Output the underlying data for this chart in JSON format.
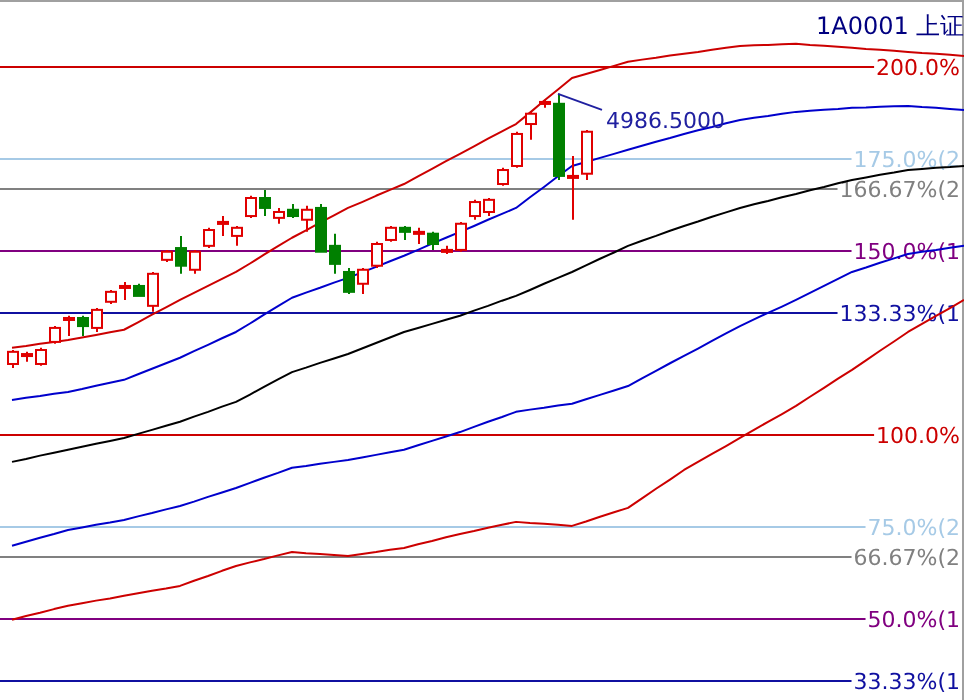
{
  "chart_data": {
    "type": "candlestick",
    "title": "1A0001 上证",
    "tick_labels": "y",
    "ylim": [
      27.7,
      217.9
    ],
    "categories": [
      null,
      null,
      null,
      null,
      null,
      null,
      null,
      null,
      null,
      null,
      null,
      null,
      null,
      null,
      null,
      null,
      null,
      null,
      null,
      null,
      null,
      null,
      null,
      null,
      null,
      null,
      null,
      null,
      null,
      null,
      null,
      null,
      null,
      null,
      null,
      null,
      null,
      null,
      null,
      null,
      null,
      null,
      null,
      null,
      null,
      null,
      null,
      null,
      null,
      null,
      null,
      null,
      null,
      null,
      null,
      null,
      null,
      null,
      null,
      null,
      null,
      null,
      null,
      null,
      null,
      null,
      null,
      null,
      null
    ],
    "yticks": [
      {
        "value": 200,
        "label": "200.0%"
      },
      {
        "value": 175,
        "label": "175.0%(2"
      },
      {
        "value": 166.67,
        "label": "166.67%(2"
      },
      {
        "value": 150,
        "label": "150.0%(1"
      },
      {
        "value": 133.33,
        "label": "133.33%(1"
      },
      {
        "value": 100,
        "label": "100.0%"
      },
      {
        "value": 75,
        "label": "75.0%(2"
      },
      {
        "value": 66.67,
        "label": "66.67%(2"
      },
      {
        "value": 50,
        "label": "50.0%(1"
      },
      {
        "value": 33.33,
        "label": "33.33%(1"
      }
    ],
    "ohlc": [
      [
        119.0,
        122.8,
        117.9,
        122.3
      ],
      [
        121.7,
        122.3,
        119.6,
        121.7
      ],
      [
        119.0,
        123.4,
        118.5,
        122.8
      ],
      [
        125.0,
        129.3,
        124.5,
        128.8
      ],
      [
        131.0,
        132.1,
        126.6,
        131.5
      ],
      [
        131.5,
        132.1,
        126.6,
        129.3
      ],
      [
        128.8,
        134.2,
        127.7,
        133.7
      ],
      [
        135.9,
        139.1,
        135.3,
        138.6
      ],
      [
        139.7,
        141.3,
        136.4,
        140.2
      ],
      [
        140.2,
        140.8,
        137.5,
        137.5
      ],
      [
        134.8,
        144.0,
        133.2,
        143.5
      ],
      [
        147.3,
        150.0,
        146.7,
        149.5
      ],
      [
        150.5,
        153.8,
        143.5,
        145.7
      ],
      [
        144.6,
        150.0,
        143.5,
        149.5
      ],
      [
        151.1,
        156.0,
        150.5,
        155.4
      ],
      [
        157.1,
        159.2,
        153.8,
        157.6
      ],
      [
        153.8,
        156.5,
        151.1,
        156.0
      ],
      [
        159.2,
        164.7,
        158.7,
        164.1
      ],
      [
        164.1,
        166.3,
        159.2,
        161.4
      ],
      [
        158.7,
        161.4,
        157.1,
        160.3
      ],
      [
        160.9,
        162.5,
        158.7,
        159.2
      ],
      [
        158.2,
        162.0,
        154.9,
        160.9
      ],
      [
        161.4,
        162.5,
        149.5,
        149.5
      ],
      [
        151.1,
        154.4,
        143.5,
        146.2
      ],
      [
        144.0,
        145.1,
        138.0,
        138.6
      ],
      [
        140.8,
        145.1,
        138.0,
        144.6
      ],
      [
        145.7,
        152.2,
        145.1,
        151.6
      ],
      [
        152.7,
        156.5,
        152.2,
        156.0
      ],
      [
        156.0,
        156.5,
        152.7,
        154.9
      ],
      [
        154.9,
        156.0,
        151.6,
        154.9
      ],
      [
        154.4,
        154.9,
        150.0,
        151.6
      ],
      [
        150.0,
        151.1,
        148.9,
        150.0
      ],
      [
        150.0,
        157.6,
        149.5,
        157.1
      ],
      [
        159.2,
        163.6,
        158.2,
        163.0
      ],
      [
        160.3,
        164.1,
        159.2,
        163.6
      ],
      [
        167.9,
        172.3,
        167.4,
        171.7
      ],
      [
        172.8,
        182.1,
        172.3,
        181.5
      ],
      [
        184.2,
        187.5,
        179.9,
        187.0
      ],
      [
        189.7,
        190.8,
        188.6,
        190.2
      ],
      [
        189.7,
        192.4,
        169.0,
        170.1
      ],
      [
        169.6,
        175.5,
        158.2,
        170.1
      ],
      [
        170.7,
        182.6,
        169.0,
        182.1
      ],
      null,
      null,
      null,
      null,
      null,
      null,
      null,
      null,
      null,
      null,
      null,
      null,
      null,
      null,
      null,
      null,
      null,
      null,
      null,
      null,
      null,
      null,
      null,
      null,
      null,
      null,
      null
    ],
    "colors": [
      "#e00000",
      "#e00000",
      "#e00000",
      "#e00000",
      "#e00000",
      "#008000",
      "#e00000",
      "#e00000",
      "#e00000",
      "#008000",
      "#e00000",
      "#e00000",
      "#008000",
      "#e00000",
      "#e00000",
      "#e00000",
      "#e00000",
      "#e00000",
      "#008000",
      "#e00000",
      "#008000",
      "#e00000",
      "#008000",
      "#008000",
      "#008000",
      "#e00000",
      "#e00000",
      "#e00000",
      "#008000",
      "#e00000",
      "#008000",
      "#e00000",
      "#e00000",
      "#e00000",
      "#e00000",
      "#e00000",
      "#e00000",
      "#e00000",
      "#e00000",
      "#008000",
      "#e00000",
      "#e00000",
      null,
      null,
      null,
      null,
      null,
      null,
      null,
      null,
      null,
      null,
      null,
      null,
      null,
      null,
      null,
      null,
      null,
      null,
      null,
      null,
      null,
      null,
      null,
      null,
      null,
      null,
      null
    ],
    "series": [
      {
        "type": "line",
        "color": "#cc0000",
        "values": [
          123.4,
          123.9,
          124.5,
          125.0,
          125.5,
          126.2,
          126.9,
          127.6,
          128.3,
          130.3,
          132.4,
          134.4,
          136.4,
          138.3,
          140.2,
          142.1,
          144.0,
          146.3,
          148.7,
          151.0,
          153.3,
          155.3,
          157.4,
          159.4,
          161.4,
          163.0,
          164.7,
          166.3,
          167.9,
          170.0,
          172.0,
          174.1,
          176.1,
          178.1,
          180.2,
          182.2,
          184.2,
          187.3,
          190.5,
          193.6,
          196.7,
          197.8,
          198.9,
          200.0,
          201.1,
          201.7,
          202.2,
          202.8,
          203.3,
          203.8,
          204.4,
          204.9,
          205.4,
          205.6,
          205.7,
          205.9,
          206.0,
          205.7,
          205.5,
          205.2,
          204.9,
          204.6,
          204.4,
          204.1,
          203.8,
          203.5,
          203.3,
          203.0,
          202.7
        ]
      },
      {
        "type": "line",
        "color": "#0000cc",
        "values": [
          109.2,
          109.8,
          110.3,
          110.9,
          111.4,
          112.2,
          113.1,
          113.9,
          114.7,
          116.2,
          117.7,
          119.2,
          120.7,
          122.5,
          124.2,
          126.0,
          127.7,
          130.0,
          132.4,
          134.7,
          137.0,
          138.4,
          139.7,
          141.1,
          142.4,
          143.9,
          145.4,
          146.9,
          148.4,
          150.0,
          151.7,
          153.3,
          154.9,
          156.5,
          158.2,
          159.8,
          161.4,
          164.3,
          167.1,
          170.0,
          172.8,
          173.9,
          175.0,
          176.1,
          177.2,
          178.3,
          179.4,
          180.4,
          181.5,
          182.5,
          183.4,
          184.4,
          185.3,
          185.9,
          186.4,
          187.0,
          187.5,
          187.8,
          188.1,
          188.3,
          188.6,
          188.7,
          188.9,
          189.0,
          189.1,
          188.8,
          188.6,
          188.3,
          188.0
        ]
      },
      {
        "type": "line",
        "color": "#000000",
        "values": [
          92.4,
          93.2,
          94.1,
          94.9,
          95.7,
          96.5,
          97.3,
          98.1,
          98.9,
          100.0,
          101.1,
          102.2,
          103.3,
          104.7,
          106.0,
          107.4,
          108.7,
          110.7,
          112.8,
          114.8,
          116.8,
          118.0,
          119.3,
          120.5,
          121.7,
          123.2,
          124.7,
          126.2,
          127.7,
          128.8,
          129.9,
          131.0,
          132.1,
          133.5,
          134.8,
          136.2,
          137.5,
          139.1,
          140.8,
          142.4,
          144.0,
          145.8,
          147.6,
          149.3,
          151.1,
          152.5,
          153.8,
          155.2,
          156.5,
          157.7,
          159.0,
          160.2,
          161.4,
          162.4,
          163.3,
          164.3,
          165.2,
          166.2,
          167.1,
          168.1,
          169.0,
          169.7,
          170.4,
          171.0,
          171.7,
          172.0,
          172.3,
          172.5,
          172.8
        ]
      },
      {
        "type": "line",
        "color": "#0000cc",
        "values": [
          69.6,
          70.7,
          71.8,
          72.8,
          73.9,
          74.6,
          75.3,
          75.9,
          76.6,
          77.6,
          78.5,
          79.5,
          80.4,
          81.6,
          82.9,
          84.1,
          85.3,
          86.7,
          88.1,
          89.4,
          90.8,
          91.3,
          91.9,
          92.4,
          92.9,
          93.6,
          94.3,
          95.0,
          95.7,
          96.9,
          98.1,
          99.3,
          100.5,
          101.9,
          103.3,
          104.6,
          106.0,
          106.6,
          107.1,
          107.7,
          108.2,
          109.4,
          110.6,
          111.8,
          113.0,
          115.1,
          117.1,
          119.2,
          121.2,
          123.2,
          125.3,
          127.3,
          129.3,
          131.1,
          132.9,
          134.6,
          136.4,
          138.3,
          140.2,
          142.1,
          144.0,
          145.2,
          146.5,
          147.7,
          148.9,
          149.5,
          150.0,
          150.6,
          151.1
        ]
      },
      {
        "type": "line",
        "color": "#cc0000",
        "values": [
          49.5,
          50.5,
          51.4,
          52.4,
          53.3,
          54.0,
          54.7,
          55.3,
          56.0,
          56.7,
          57.4,
          58.0,
          58.7,
          60.1,
          61.4,
          62.8,
          64.1,
          65.1,
          66.0,
          67.0,
          67.9,
          67.6,
          67.4,
          67.1,
          66.8,
          67.4,
          67.9,
          68.5,
          69.0,
          70.0,
          70.9,
          71.9,
          72.8,
          73.6,
          74.5,
          75.3,
          76.1,
          75.8,
          75.6,
          75.3,
          75.0,
          76.2,
          77.5,
          78.7,
          79.9,
          82.5,
          85.1,
          87.6,
          90.2,
          92.4,
          94.6,
          96.7,
          98.9,
          101.1,
          103.3,
          105.4,
          107.6,
          110.1,
          112.5,
          115.0,
          117.4,
          120.0,
          122.6,
          125.1,
          127.7,
          129.9,
          132.1,
          134.2,
          136.4
        ]
      }
    ],
    "ref_lines": [
      {
        "axis": "y",
        "value": 200,
        "color": "#cc0000"
      },
      {
        "axis": "y",
        "value": 175,
        "color": "#a6cae6"
      },
      {
        "axis": "y",
        "value": 166.67,
        "color": "#808080"
      },
      {
        "axis": "y",
        "value": 150,
        "color": "#800080"
      },
      {
        "axis": "y",
        "value": 133.33,
        "color": "#1010a0"
      },
      {
        "axis": "y",
        "value": 100,
        "color": "#cc0000"
      },
      {
        "axis": "y",
        "value": 75,
        "color": "#a6cae6"
      },
      {
        "axis": "y",
        "value": 66.67,
        "color": "#808080"
      },
      {
        "axis": "y",
        "value": 50,
        "color": "#800080"
      },
      {
        "axis": "y",
        "value": 33.33,
        "color": "#1010a0"
      }
    ],
    "annotations": [
      "4986.5000"
    ]
  }
}
